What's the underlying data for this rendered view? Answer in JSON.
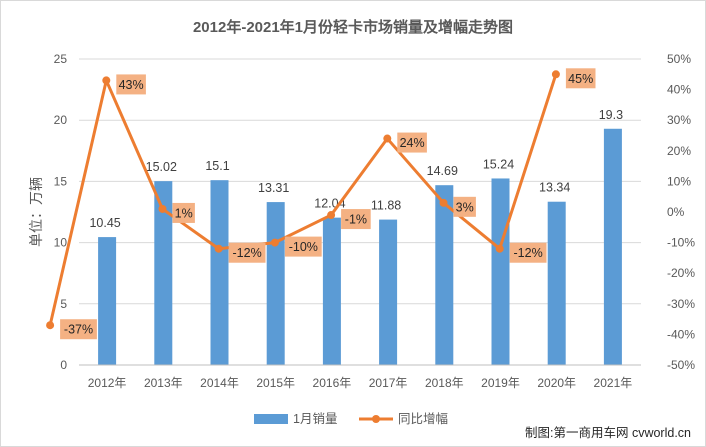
{
  "chart_data": {
    "type": "bar",
    "title": "2012年-2021年1月份轻卡市场销量及增幅走势图",
    "ylabel": "单位：万辆",
    "categories": [
      "2012年",
      "2013年",
      "2014年",
      "2015年",
      "2016年",
      "2017年",
      "2018年",
      "2019年",
      "2020年",
      "2021年"
    ],
    "ylim": [
      0,
      25
    ],
    "y_ticks": [
      "0",
      "5",
      "10",
      "15",
      "20",
      "25"
    ],
    "y2lim": [
      -50,
      50
    ],
    "y2_ticks": [
      "-50%",
      "-40%",
      "-30%",
      "-20%",
      "-10%",
      "0%",
      "10%",
      "20%",
      "30%",
      "40%",
      "50%"
    ],
    "grid": true,
    "legend_position": "bottom",
    "series": [
      {
        "name": "1月销量",
        "type": "bar",
        "axis": "left",
        "color": "#5b9bd5",
        "values": [
          10.45,
          15.02,
          15.1,
          13.31,
          12.04,
          11.88,
          14.69,
          15.24,
          13.34,
          19.3
        ],
        "labels": [
          "10.45",
          "15.02",
          "15.1",
          "13.31",
          "12.04",
          "11.88",
          "14.69",
          "15.24",
          "13.34",
          "19.3"
        ]
      },
      {
        "name": "同比增幅",
        "type": "line",
        "axis": "right",
        "color": "#ed7d31",
        "label_bg": "#f4b183",
        "values": [
          -37,
          43,
          1,
          -12,
          -10,
          -1,
          24,
          3,
          -12,
          45
        ],
        "labels": [
          "-37%",
          "43%",
          "1%",
          "-12%",
          "-10%",
          "-1%",
          "24%",
          "3%",
          "-12%",
          "45%"
        ]
      }
    ]
  },
  "source_text": "制图:第一商用车网 cvworld.cn"
}
